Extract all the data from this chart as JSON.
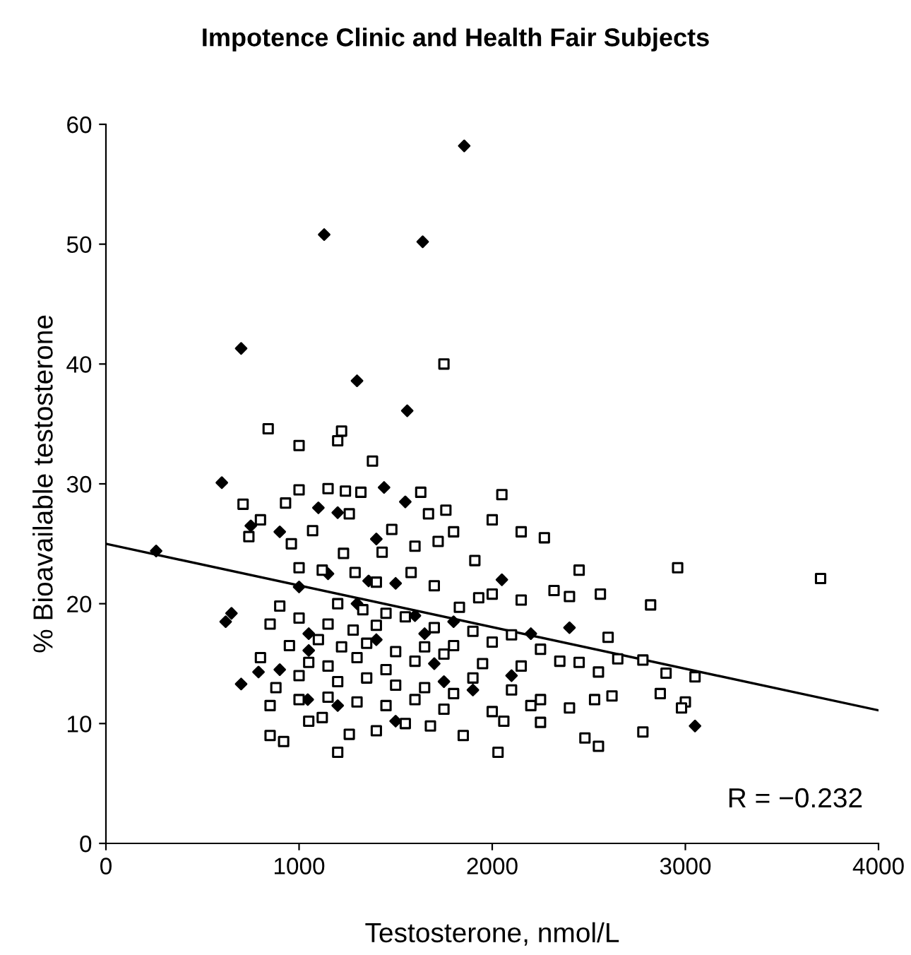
{
  "chart_data": {
    "type": "scatter",
    "title": "Impotence Clinic and Health Fair Subjects",
    "xlabel": "Testosterone, nmol/L",
    "ylabel": "% Bioavailable testosterone",
    "xlim": [
      0,
      4000
    ],
    "xticks": [
      0,
      1000,
      2000,
      3000,
      4000
    ],
    "ylim": [
      0,
      60
    ],
    "yticks": [
      0,
      10,
      20,
      30,
      40,
      50,
      60
    ],
    "grid": false,
    "legend": false,
    "annotations": [
      "R = −0.232"
    ],
    "series": [
      {
        "marker": "diamond",
        "color": "#000000",
        "x": [
          1855,
          1130,
          1640,
          700,
          1300,
          1560,
          1440,
          600,
          260,
          1400,
          3050,
          1650,
          1200,
          750,
          1000,
          900,
          650,
          620,
          1050,
          790,
          1360,
          1500,
          1045,
          700,
          1200,
          1500,
          1050,
          2050,
          2400,
          2200,
          1800,
          1400,
          1600,
          1300,
          1700,
          1100,
          1550,
          900,
          1150,
          2100,
          1900,
          1750
        ],
        "values": [
          58.2,
          50.8,
          50.2,
          41.3,
          38.6,
          36.1,
          29.7,
          30.1,
          24.4,
          25.4,
          9.8,
          17.5,
          27.6,
          26.5,
          21.4,
          14.5,
          19.2,
          18.5,
          16.1,
          14.3,
          21.9,
          21.7,
          12.0,
          13.3,
          11.5,
          10.2,
          17.5,
          22.0,
          18.0,
          17.5,
          18.5,
          17.0,
          19.0,
          20.0,
          15.0,
          28.0,
          28.5,
          26.0,
          22.5,
          14.0,
          12.8,
          13.5
        ]
      },
      {
        "marker": "square",
        "color": "#000000",
        "x": [
          1750,
          840,
          1000,
          1220,
          1200,
          1380,
          1000,
          1150,
          1240,
          1320,
          1630,
          2050,
          930,
          710,
          1760,
          1670,
          1260,
          800,
          1480,
          1070,
          2000,
          2150,
          2270,
          1800,
          960,
          740,
          1720,
          1230,
          1430,
          1600,
          1910,
          1000,
          1120,
          1290,
          1580,
          2450,
          2960,
          3700,
          1400,
          1700,
          2000,
          2320,
          2560,
          2820,
          900,
          1200,
          1330,
          1450,
          1550,
          1830,
          1930,
          2150,
          2400,
          850,
          1000,
          1150,
          1280,
          1400,
          1700,
          1900,
          2100,
          2600,
          950,
          1100,
          1220,
          1350,
          1500,
          1650,
          1800,
          2000,
          2250,
          2450,
          2650,
          2780,
          2900,
          3050,
          800,
          1050,
          1150,
          1300,
          1450,
          1600,
          1750,
          1950,
          2150,
          2350,
          2550,
          880,
          1000,
          1200,
          1350,
          1500,
          1650,
          1800,
          2100,
          2250,
          2620,
          2870,
          3000,
          850,
          1000,
          1150,
          1300,
          1450,
          1600,
          1750,
          2000,
          2200,
          2400,
          2530,
          850,
          920,
          1050,
          1200,
          1260,
          1400,
          1550,
          1680,
          1850,
          2030,
          2060,
          2250,
          2480,
          2550,
          2780,
          2980,
          1120,
          1900
        ],
        "values": [
          40.0,
          34.6,
          33.2,
          34.4,
          33.6,
          31.9,
          29.5,
          29.6,
          29.4,
          29.3,
          29.3,
          29.1,
          28.4,
          28.3,
          27.8,
          27.5,
          27.5,
          27.0,
          26.2,
          26.1,
          27.0,
          26.0,
          25.5,
          26.0,
          25.0,
          25.6,
          25.2,
          24.2,
          24.3,
          24.8,
          23.6,
          23.0,
          22.8,
          22.6,
          22.6,
          22.8,
          23.0,
          22.1,
          21.8,
          21.5,
          20.8,
          21.1,
          20.8,
          19.9,
          19.8,
          20.0,
          19.5,
          19.2,
          18.9,
          19.7,
          20.5,
          20.3,
          20.6,
          18.3,
          18.8,
          18.3,
          17.8,
          18.2,
          18.0,
          17.7,
          17.4,
          17.2,
          16.5,
          17.0,
          16.4,
          16.7,
          16.0,
          16.4,
          16.5,
          16.8,
          16.2,
          15.1,
          15.4,
          15.3,
          14.2,
          13.9,
          15.5,
          15.1,
          14.8,
          15.5,
          14.5,
          15.2,
          15.8,
          15.0,
          14.8,
          15.2,
          14.3,
          13.0,
          14.0,
          13.5,
          13.8,
          13.2,
          13.0,
          12.5,
          12.8,
          12.0,
          12.3,
          12.5,
          11.8,
          11.5,
          12.0,
          12.2,
          11.8,
          11.5,
          12.0,
          11.2,
          11.0,
          11.5,
          11.3,
          12.0,
          9.0,
          8.5,
          10.2,
          7.6,
          9.1,
          9.4,
          10.0,
          9.8,
          9.0,
          7.6,
          10.2,
          10.1,
          8.8,
          8.1,
          9.3,
          11.3,
          10.5,
          13.8
        ]
      },
      {
        "type": "line",
        "marker": "none",
        "color": "#000000",
        "x": [
          0,
          4000
        ],
        "values": [
          25.0,
          11.1
        ]
      }
    ]
  }
}
